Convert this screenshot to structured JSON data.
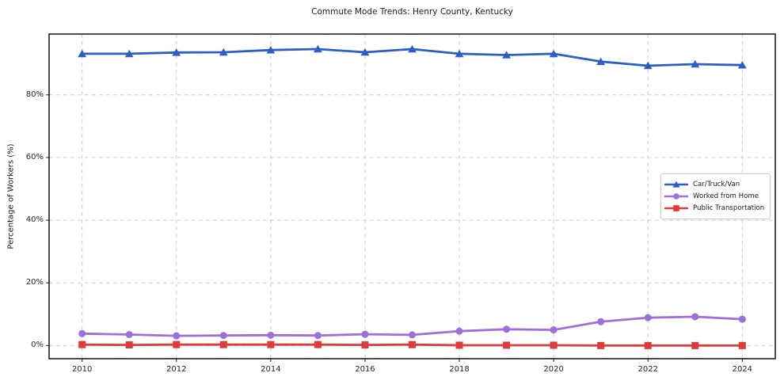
{
  "title": "Commute Mode Trends: Henry County, Kentucky",
  "colors": {
    "car": "#2c5fc5",
    "home": "#9d70da",
    "transit": "#e03a3a",
    "grid": "#cbcbcb",
    "axis_border": "#000000",
    "tick": "#262626",
    "text": "#1a1a1a",
    "legend_border": "#cccccc",
    "background": "#ffffff"
  },
  "chart_data": {
    "type": "line",
    "title": "Commute Mode Trends: Henry County, Kentucky",
    "xlabel": "",
    "ylabel": "Percentage of Workers (%)",
    "x": [
      2010,
      2011,
      2012,
      2013,
      2014,
      2015,
      2016,
      2017,
      2018,
      2019,
      2020,
      2021,
      2022,
      2023,
      2024
    ],
    "series": [
      {
        "name": "Car/Truck/Van",
        "marker": "triangle",
        "color": "#2c5fc5",
        "values": [
          93.1,
          93.1,
          93.5,
          93.6,
          94.3,
          94.6,
          93.6,
          94.6,
          93.1,
          92.7,
          93.1,
          90.6,
          89.3,
          89.8,
          89.5
        ]
      },
      {
        "name": "Worked from Home",
        "marker": "circle",
        "color": "#9d70da",
        "values": [
          3.8,
          3.5,
          3.1,
          3.2,
          3.3,
          3.2,
          3.6,
          3.4,
          4.6,
          5.2,
          5.0,
          7.6,
          8.9,
          9.2,
          8.4
        ]
      },
      {
        "name": "Public Transportation",
        "marker": "square",
        "color": "#e03a3a",
        "values": [
          0.3,
          0.2,
          0.3,
          0.3,
          0.3,
          0.3,
          0.2,
          0.3,
          0.1,
          0.1,
          0.1,
          0.0,
          0.0,
          0.0,
          0.0
        ]
      }
    ],
    "xlim": [
      2009.3,
      2024.7
    ],
    "ylim": [
      -4.2,
      99.4
    ],
    "xticks": [
      {
        "v": 2010,
        "label": "2010"
      },
      {
        "v": 2012,
        "label": "2012"
      },
      {
        "v": 2014,
        "label": "2014"
      },
      {
        "v": 2016,
        "label": "2016"
      },
      {
        "v": 2018,
        "label": "2018"
      },
      {
        "v": 2020,
        "label": "2020"
      },
      {
        "v": 2022,
        "label": "2022"
      },
      {
        "v": 2024,
        "label": "2024"
      }
    ],
    "yticks": [
      {
        "v": 0,
        "label": "0%"
      },
      {
        "v": 20,
        "label": "20%"
      },
      {
        "v": 40,
        "label": "40%"
      },
      {
        "v": 60,
        "label": "60%"
      },
      {
        "v": 80,
        "label": "80%"
      }
    ],
    "grid": true,
    "grid_style": "dashed",
    "legend_position": "center right"
  }
}
